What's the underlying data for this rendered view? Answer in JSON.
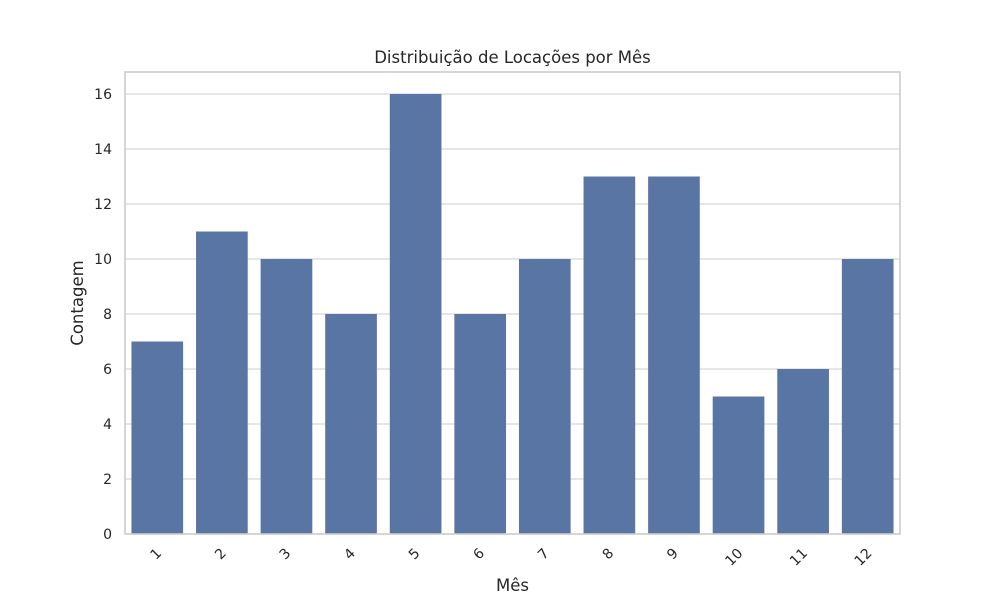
{
  "chart_data": {
    "type": "bar",
    "title": "Distribuição de Locações por Mês",
    "xlabel": "Mês",
    "ylabel": "Contagem",
    "categories": [
      "1",
      "2",
      "3",
      "4",
      "5",
      "6",
      "7",
      "8",
      "9",
      "10",
      "11",
      "12"
    ],
    "values": [
      7,
      11,
      10,
      8,
      16,
      8,
      10,
      13,
      13,
      5,
      6,
      10
    ],
    "ylim": [
      0,
      16.8
    ],
    "yticks": [
      "0",
      "2",
      "4",
      "6",
      "8",
      "10",
      "12",
      "14",
      "16"
    ],
    "x_tick_rotation_deg": 45,
    "grid": "horizontal",
    "bar_color": "#5875a4",
    "grid_color": "#cccccc",
    "text_color": "#262626"
  }
}
